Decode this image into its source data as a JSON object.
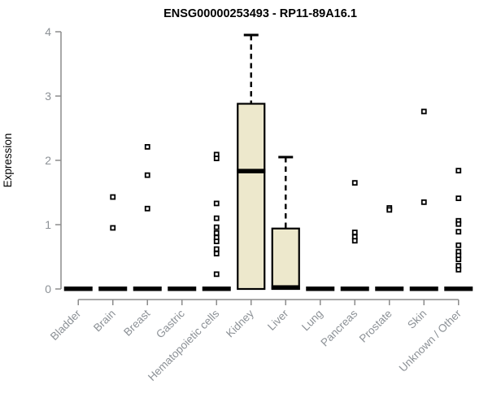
{
  "title": "ENSG00000253493 - RP11-89A16.1",
  "chart_data": {
    "type": "boxplot",
    "title": "ENSG00000253493 - RP11-89A16.1",
    "xlabel": "",
    "ylabel": "Expression",
    "ylim": [
      0,
      4
    ],
    "yticks": [
      0,
      1,
      2,
      3,
      4
    ],
    "grid": false,
    "legend": null,
    "categories": [
      "Bladder",
      "Brain",
      "Breast",
      "Gastric",
      "Hematopoietic cells",
      "Kidney",
      "Liver",
      "Lung",
      "Pancreas",
      "Prostate",
      "Skin",
      "Unknown / Other"
    ],
    "boxes": [
      {
        "category": "Bladder",
        "q1": 0,
        "median": 0,
        "q3": 0,
        "whisker_high": 0,
        "outliers": []
      },
      {
        "category": "Brain",
        "q1": 0,
        "median": 0,
        "q3": 0,
        "whisker_high": 0,
        "outliers": [
          1.43,
          0.95
        ]
      },
      {
        "category": "Breast",
        "q1": 0,
        "median": 0,
        "q3": 0,
        "whisker_high": 0,
        "outliers": [
          2.21,
          1.77,
          1.25
        ]
      },
      {
        "category": "Gastric",
        "q1": 0,
        "median": 0,
        "q3": 0,
        "whisker_high": 0,
        "outliers": []
      },
      {
        "category": "Hematopoietic cells",
        "q1": 0,
        "median": 0,
        "q3": 0,
        "whisker_high": 0,
        "outliers": [
          2.09,
          2.03,
          1.33,
          1.1,
          0.96,
          0.87,
          0.8,
          0.74,
          0.62,
          0.55,
          0.23
        ]
      },
      {
        "category": "Kidney",
        "q1": 0,
        "median": 1.83,
        "q3": 2.88,
        "whisker_high": 3.95,
        "outliers": []
      },
      {
        "category": "Liver",
        "q1": 0,
        "median": 0.02,
        "q3": 0.94,
        "whisker_high": 2.05,
        "outliers": []
      },
      {
        "category": "Lung",
        "q1": 0,
        "median": 0,
        "q3": 0,
        "whisker_high": 0,
        "outliers": []
      },
      {
        "category": "Pancreas",
        "q1": 0,
        "median": 0,
        "q3": 0,
        "whisker_high": 0,
        "outliers": [
          1.65,
          0.88,
          0.81,
          0.75
        ]
      },
      {
        "category": "Prostate",
        "q1": 0,
        "median": 0,
        "q3": 0,
        "whisker_high": 0,
        "outliers": [
          1.26,
          1.23
        ]
      },
      {
        "category": "Skin",
        "q1": 0,
        "median": 0,
        "q3": 0,
        "whisker_high": 0,
        "outliers": [
          2.76,
          1.35
        ]
      },
      {
        "category": "Unknown / Other",
        "q1": 0,
        "median": 0,
        "q3": 0,
        "whisker_high": 0,
        "outliers": [
          1.84,
          1.41,
          1.06,
          1.01,
          0.89,
          0.68,
          0.58,
          0.52,
          0.46,
          0.36,
          0.3
        ]
      }
    ],
    "colors": {
      "background": "#FFFFFF",
      "box_fill": "#EDE8CC",
      "box_stroke": "#000000",
      "median": "#000000",
      "whisker": "#000000",
      "outlier_stroke": "#000000",
      "outlier_fill": "#FFFFFF",
      "axis": "#8C8C8C",
      "tick_label": "#8C9196",
      "title": "#000000"
    }
  }
}
